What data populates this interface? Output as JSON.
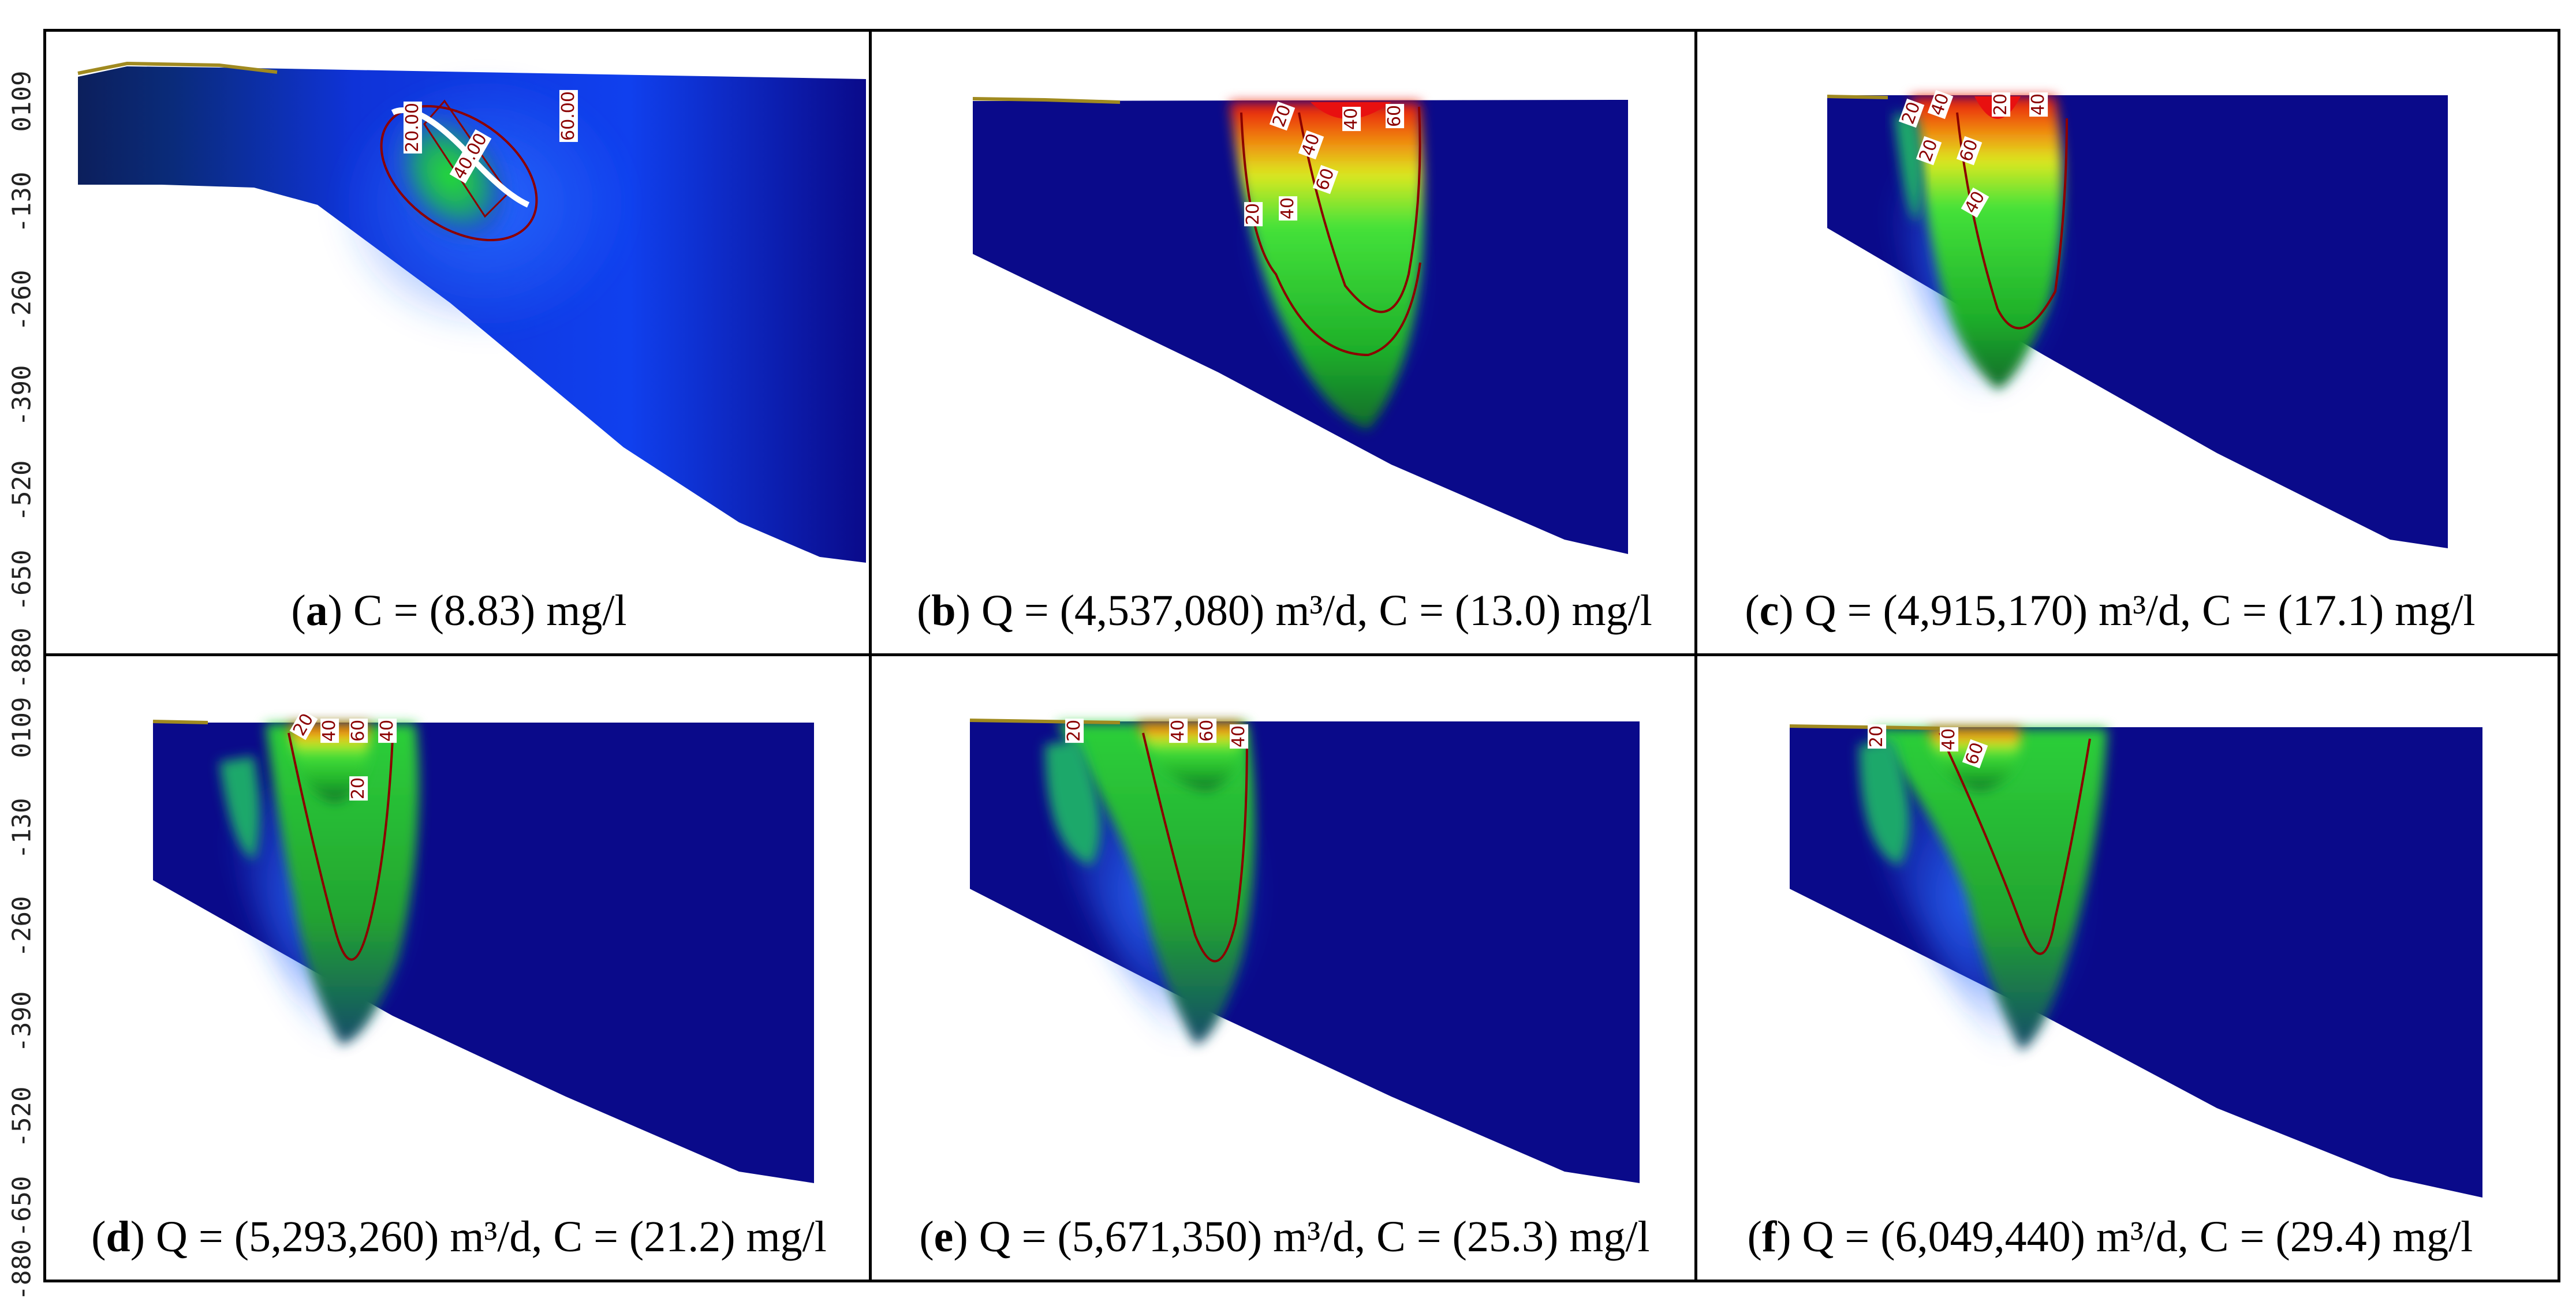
{
  "figure": {
    "y_axis_ticks": [
      "0109",
      "-130",
      "-260",
      "-390",
      "-520",
      "-650",
      "-880"
    ],
    "panels": [
      {
        "id": "a",
        "q": "",
        "c": "8.83",
        "caption_rest": " C = (8.83) mg/l",
        "contour_labels": [
          "20.00",
          "40.00",
          "60.00"
        ]
      },
      {
        "id": "b",
        "q": "4,537,080",
        "c": "13.0",
        "caption_rest": " Q = (4,537,080) m³/d, C = (13.0) mg/l",
        "contour_labels": [
          "20",
          "40",
          "60",
          "40",
          "20",
          "40",
          "60"
        ]
      },
      {
        "id": "c",
        "q": "4,915,170",
        "c": "17.1",
        "caption_rest": " Q = (4,915,170) m³/d, C = (17.1) mg/l",
        "contour_labels": [
          "20",
          "40",
          "60",
          "20",
          "40",
          "20",
          "40"
        ]
      },
      {
        "id": "d",
        "q": "5,293,260",
        "c": "21.2",
        "caption_rest": " Q = (5,293,260) m³/d, C = (21.2) mg/l",
        "contour_labels": [
          "20",
          "40",
          "60",
          "40",
          "20"
        ]
      },
      {
        "id": "e",
        "q": "5,671,350",
        "c": "25.3",
        "caption_rest": " Q = (5,671,350) m³/d, C = (25.3) mg/l",
        "contour_labels": [
          "20",
          "40",
          "60",
          "40"
        ]
      },
      {
        "id": "f",
        "q": "6,049,440",
        "c": "29.4",
        "caption_rest": " Q = (6,049,440) m³/d, C = (29.4) mg/l",
        "contour_labels": [
          "20",
          "40",
          "60"
        ]
      }
    ],
    "colors": {
      "background_navy": "#0a0a8a",
      "plume_green": "#22cc22",
      "plume_red": "#e81010",
      "contour": "#8b0000",
      "surface": "#a08a20"
    }
  }
}
